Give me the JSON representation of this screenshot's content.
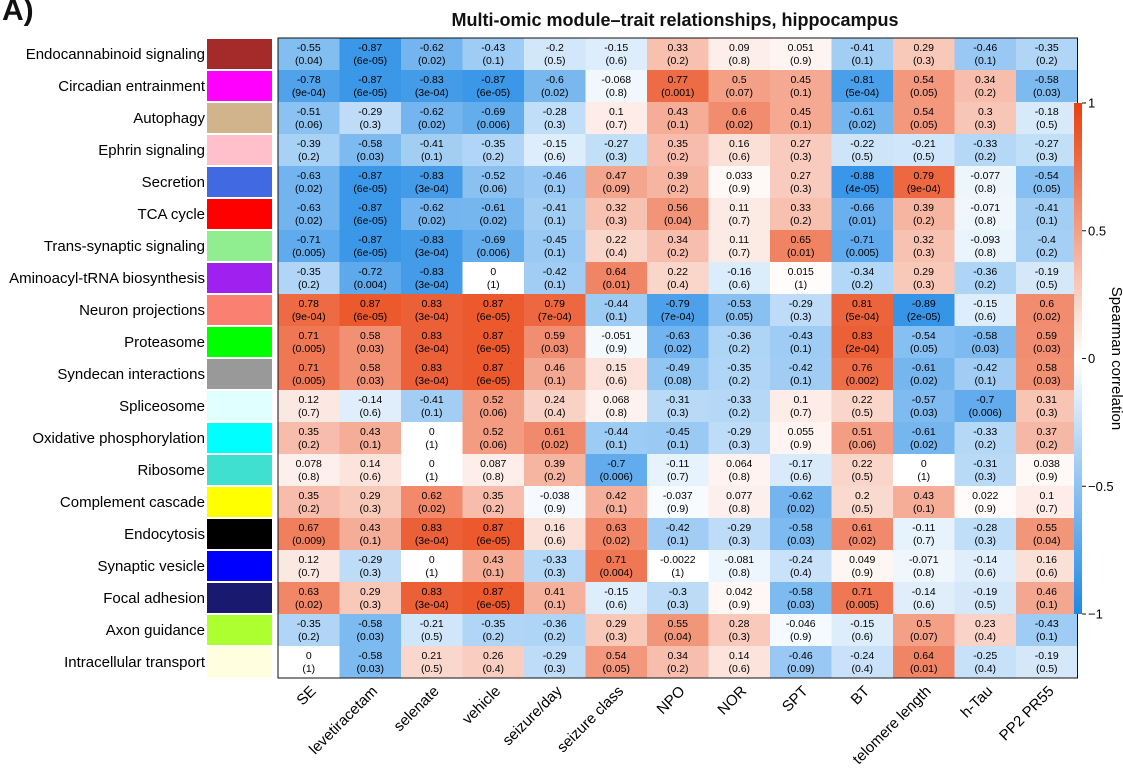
{
  "panel_label": "A)",
  "chart_data": {
    "type": "heatmap",
    "title": "Multi-omic module–trait relationships, hippocampus",
    "columns": [
      "SE",
      "levetiracetam",
      "selenate",
      "vehicle",
      "seizure/day",
      "seizure class",
      "NPO",
      "NOR",
      "SPT",
      "BT",
      "telomere length",
      "h-Tau",
      "PP2 PR55"
    ],
    "rows": [
      {
        "name": "Endocannabinoid signaling",
        "module_color": "#a52a2a",
        "r": [
          "-0.55",
          "-0.87",
          "-0.62",
          "-0.43",
          "-0.2",
          "-0.15",
          "0.33",
          "0.09",
          "0.051",
          "-0.41",
          "0.29",
          "-0.46",
          "-0.35"
        ],
        "p": [
          "(0.04)",
          "(6e-05)",
          "(0.02)",
          "(0.1)",
          "(0.5)",
          "(0.6)",
          "(0.2)",
          "(0.8)",
          "(0.9)",
          "(0.1)",
          "(0.3)",
          "(0.1)",
          "(0.2)"
        ]
      },
      {
        "name": "Circadian entrainment",
        "module_color": "#ff00ff",
        "r": [
          "-0.78",
          "-0.87",
          "-0.83",
          "-0.87",
          "-0.6",
          "-0.068",
          "0.77",
          "0.5",
          "0.45",
          "-0.81",
          "0.54",
          "0.34",
          "-0.58"
        ],
        "p": [
          "(9e-04)",
          "(6e-05)",
          "(3e-04)",
          "(6e-05)",
          "(0.02)",
          "(0.8)",
          "(0.001)",
          "(0.07)",
          "(0.1)",
          "(5e-04)",
          "(0.05)",
          "(0.2)",
          "(0.03)"
        ]
      },
      {
        "name": "Autophagy",
        "module_color": "#d2b48c",
        "r": [
          "-0.51",
          "-0.29",
          "-0.62",
          "-0.69",
          "-0.28",
          "0.1",
          "0.43",
          "0.6",
          "0.45",
          "-0.61",
          "0.54",
          "0.3",
          "-0.18"
        ],
        "p": [
          "(0.06)",
          "(0.3)",
          "(0.02)",
          "(0.006)",
          "(0.3)",
          "(0.7)",
          "(0.1)",
          "(0.02)",
          "(0.1)",
          "(0.02)",
          "(0.05)",
          "(0.3)",
          "(0.5)"
        ]
      },
      {
        "name": "Ephrin signaling",
        "module_color": "#ffc0cb",
        "r": [
          "-0.39",
          "-0.58",
          "-0.41",
          "-0.35",
          "-0.15",
          "-0.27",
          "0.35",
          "0.16",
          "0.27",
          "-0.22",
          "-0.21",
          "-0.33",
          "-0.27"
        ],
        "p": [
          "(0.2)",
          "(0.03)",
          "(0.1)",
          "(0.2)",
          "(0.6)",
          "(0.3)",
          "(0.2)",
          "(0.6)",
          "(0.3)",
          "(0.5)",
          "(0.5)",
          "(0.2)",
          "(0.3)"
        ]
      },
      {
        "name": "Secretion",
        "module_color": "#4169e1",
        "r": [
          "-0.63",
          "-0.87",
          "-0.83",
          "-0.52",
          "-0.46",
          "0.47",
          "0.39",
          "0.033",
          "0.27",
          "-0.88",
          "0.79",
          "-0.077",
          "-0.54"
        ],
        "p": [
          "(0.02)",
          "(6e-05)",
          "(3e-04)",
          "(0.06)",
          "(0.1)",
          "(0.09)",
          "(0.2)",
          "(0.9)",
          "(0.3)",
          "(4e-05)",
          "(9e-04)",
          "(0.8)",
          "(0.05)"
        ]
      },
      {
        "name": "TCA cycle",
        "module_color": "#ff0000",
        "r": [
          "-0.63",
          "-0.87",
          "-0.62",
          "-0.61",
          "-0.41",
          "0.32",
          "0.56",
          "0.11",
          "0.33",
          "-0.66",
          "0.39",
          "-0.071",
          "-0.41"
        ],
        "p": [
          "(0.02)",
          "(6e-05)",
          "(0.02)",
          "(0.02)",
          "(0.1)",
          "(0.3)",
          "(0.04)",
          "(0.7)",
          "(0.2)",
          "(0.01)",
          "(0.2)",
          "(0.8)",
          "(0.1)"
        ]
      },
      {
        "name": "Trans-synaptic signaling",
        "module_color": "#90ee90",
        "r": [
          "-0.71",
          "-0.87",
          "-0.83",
          "-0.69",
          "-0.45",
          "0.22",
          "0.34",
          "0.11",
          "0.65",
          "-0.71",
          "0.32",
          "-0.093",
          "-0.4"
        ],
        "p": [
          "(0.005)",
          "(6e-05)",
          "(3e-04)",
          "(0.006)",
          "(0.1)",
          "(0.4)",
          "(0.2)",
          "(0.7)",
          "(0.01)",
          "(0.005)",
          "(0.3)",
          "(0.8)",
          "(0.2)"
        ]
      },
      {
        "name": "Aminoacyl-tRNA biosynthesis",
        "module_color": "#a020f0",
        "r": [
          "-0.35",
          "-0.72",
          "-0.83",
          "0",
          "-0.42",
          "0.64",
          "0.22",
          "-0.16",
          "0.015",
          "-0.34",
          "0.29",
          "-0.36",
          "-0.19"
        ],
        "p": [
          "(0.2)",
          "(0.004)",
          "(3e-04)",
          "(1)",
          "(0.1)",
          "(0.01)",
          "(0.4)",
          "(0.6)",
          "(1)",
          "(0.2)",
          "(0.3)",
          "(0.2)",
          "(0.5)"
        ]
      },
      {
        "name": "Neuron projections",
        "module_color": "#fa8072",
        "r": [
          "0.78",
          "0.87",
          "0.83",
          "0.87",
          "0.79",
          "-0.44",
          "-0.79",
          "-0.53",
          "-0.29",
          "0.81",
          "-0.89",
          "-0.15",
          "0.6"
        ],
        "p": [
          "(9e-04)",
          "(6e-05)",
          "(3e-04)",
          "(6e-05)",
          "(7e-04)",
          "(0.1)",
          "(7e-04)",
          "(0.05)",
          "(0.3)",
          "(5e-04)",
          "(2e-05)",
          "(0.6)",
          "(0.02)"
        ]
      },
      {
        "name": "Proteasome",
        "module_color": "#00ff00",
        "r": [
          "0.71",
          "0.58",
          "0.83",
          "0.87",
          "0.59",
          "-0.051",
          "-0.63",
          "-0.36",
          "-0.43",
          "0.83",
          "-0.54",
          "-0.58",
          "0.59"
        ],
        "p": [
          "(0.005)",
          "(0.03)",
          "(3e-04)",
          "(6e-05)",
          "(0.03)",
          "(0.9)",
          "(0.02)",
          "(0.2)",
          "(0.1)",
          "(2e-04)",
          "(0.05)",
          "(0.03)",
          "(0.03)"
        ]
      },
      {
        "name": "Syndecan interactions",
        "module_color": "#999999",
        "r": [
          "0.71",
          "0.58",
          "0.83",
          "0.87",
          "0.46",
          "0.15",
          "-0.49",
          "-0.35",
          "-0.42",
          "0.76",
          "-0.61",
          "-0.42",
          "0.58"
        ],
        "p": [
          "(0.005)",
          "(0.03)",
          "(3e-04)",
          "(6e-05)",
          "(0.1)",
          "(0.6)",
          "(0.08)",
          "(0.2)",
          "(0.1)",
          "(0.002)",
          "(0.02)",
          "(0.1)",
          "(0.03)"
        ]
      },
      {
        "name": "Spliceosome",
        "module_color": "#e0ffff",
        "r": [
          "0.12",
          "-0.14",
          "-0.41",
          "0.52",
          "0.24",
          "0.068",
          "-0.31",
          "-0.33",
          "0.1",
          "0.22",
          "-0.57",
          "-0.7",
          "0.31"
        ],
        "p": [
          "(0.7)",
          "(0.6)",
          "(0.1)",
          "(0.06)",
          "(0.4)",
          "(0.8)",
          "(0.3)",
          "(0.2)",
          "(0.7)",
          "(0.5)",
          "(0.03)",
          "(0.006)",
          "(0.3)"
        ]
      },
      {
        "name": "Oxidative phosphorylation",
        "module_color": "#00ffff",
        "r": [
          "0.35",
          "0.43",
          "0",
          "0.52",
          "0.61",
          "-0.44",
          "-0.45",
          "-0.29",
          "0.055",
          "0.51",
          "-0.61",
          "-0.33",
          "0.37"
        ],
        "p": [
          "(0.2)",
          "(0.1)",
          "(1)",
          "(0.06)",
          "(0.02)",
          "(0.1)",
          "(0.1)",
          "(0.3)",
          "(0.9)",
          "(0.06)",
          "(0.02)",
          "(0.2)",
          "(0.2)"
        ]
      },
      {
        "name": "Ribosome",
        "module_color": "#40e0d0",
        "r": [
          "0.078",
          "0.14",
          "0",
          "0.087",
          "0.39",
          "-0.7",
          "-0.11",
          "0.064",
          "-0.17",
          "0.22",
          "0",
          "-0.31",
          "0.038"
        ],
        "p": [
          "(0.8)",
          "(0.6)",
          "(1)",
          "(0.8)",
          "(0.2)",
          "(0.006)",
          "(0.7)",
          "(0.8)",
          "(0.6)",
          "(0.5)",
          "(1)",
          "(0.3)",
          "(0.9)"
        ]
      },
      {
        "name": "Complement cascade",
        "module_color": "#ffff00",
        "r": [
          "0.35",
          "0.29",
          "0.62",
          "0.35",
          "-0.038",
          "0.42",
          "-0.037",
          "0.077",
          "-0.62",
          "0.2",
          "0.43",
          "0.022",
          "0.1"
        ],
        "p": [
          "(0.2)",
          "(0.3)",
          "(0.02)",
          "(0.2)",
          "(0.9)",
          "(0.1)",
          "(0.9)",
          "(0.8)",
          "(0.02)",
          "(0.5)",
          "(0.1)",
          "(0.9)",
          "(0.7)"
        ]
      },
      {
        "name": "Endocytosis",
        "module_color": "#000000",
        "r": [
          "0.67",
          "0.43",
          "0.83",
          "0.87",
          "0.16",
          "0.63",
          "-0.42",
          "-0.29",
          "-0.58",
          "0.61",
          "-0.11",
          "-0.28",
          "0.55"
        ],
        "p": [
          "(0.009)",
          "(0.1)",
          "(3e-04)",
          "(6e-05)",
          "(0.6)",
          "(0.02)",
          "(0.1)",
          "(0.3)",
          "(0.03)",
          "(0.02)",
          "(0.7)",
          "(0.3)",
          "(0.04)"
        ]
      },
      {
        "name": "Synaptic vesicle",
        "module_color": "#0000ff",
        "r": [
          "0.12",
          "-0.29",
          "0",
          "0.43",
          "-0.33",
          "0.71",
          "-0.0022",
          "-0.081",
          "-0.24",
          "0.049",
          "-0.071",
          "-0.14",
          "0.16"
        ],
        "p": [
          "(0.7)",
          "(0.3)",
          "(1)",
          "(0.1)",
          "(0.3)",
          "(0.004)",
          "(1)",
          "(0.8)",
          "(0.4)",
          "(0.9)",
          "(0.8)",
          "(0.6)",
          "(0.6)"
        ]
      },
      {
        "name": "Focal adhesion",
        "module_color": "#191970",
        "r": [
          "0.63",
          "0.29",
          "0.83",
          "0.87",
          "0.41",
          "-0.15",
          "-0.3",
          "0.042",
          "-0.58",
          "0.71",
          "-0.14",
          "-0.19",
          "0.46"
        ],
        "p": [
          "(0.02)",
          "(0.3)",
          "(3e-04)",
          "(6e-05)",
          "(0.1)",
          "(0.6)",
          "(0.3)",
          "(0.9)",
          "(0.03)",
          "(0.005)",
          "(0.6)",
          "(0.5)",
          "(0.1)"
        ]
      },
      {
        "name": "Axon guidance",
        "module_color": "#adff2f",
        "r": [
          "-0.35",
          "-0.58",
          "-0.21",
          "-0.35",
          "-0.36",
          "0.29",
          "0.55",
          "0.28",
          "-0.046",
          "-0.15",
          "0.5",
          "0.23",
          "-0.43"
        ],
        "p": [
          "(0.2)",
          "(0.03)",
          "(0.5)",
          "(0.2)",
          "(0.2)",
          "(0.3)",
          "(0.04)",
          "(0.3)",
          "(0.9)",
          "(0.6)",
          "(0.07)",
          "(0.4)",
          "(0.1)"
        ]
      },
      {
        "name": "Intracellular transport",
        "module_color": "#ffffe0",
        "r": [
          "0",
          "-0.58",
          "0.21",
          "0.26",
          "-0.29",
          "0.54",
          "0.34",
          "0.14",
          "-0.46",
          "-0.24",
          "0.64",
          "-0.25",
          "-0.19"
        ],
        "p": [
          "(1)",
          "(0.03)",
          "(0.5)",
          "(0.4)",
          "(0.3)",
          "(0.05)",
          "(0.2)",
          "(0.6)",
          "(0.09)",
          "(0.4)",
          "(0.01)",
          "(0.4)",
          "(0.5)"
        ]
      }
    ],
    "colorbar": {
      "label": "Spearman correlation",
      "range": [
        -1,
        1
      ],
      "ticks": [
        {
          "value": 1,
          "label": "1"
        },
        {
          "value": 0.5,
          "label": "0.5"
        },
        {
          "value": 0,
          "label": "0"
        },
        {
          "value": -0.5,
          "label": "−0.5"
        },
        {
          "value": -1,
          "label": "−1"
        }
      ],
      "colors": {
        "negative": "#1e88e5",
        "zero": "#ffffff",
        "positive": "#e8400e"
      }
    }
  }
}
